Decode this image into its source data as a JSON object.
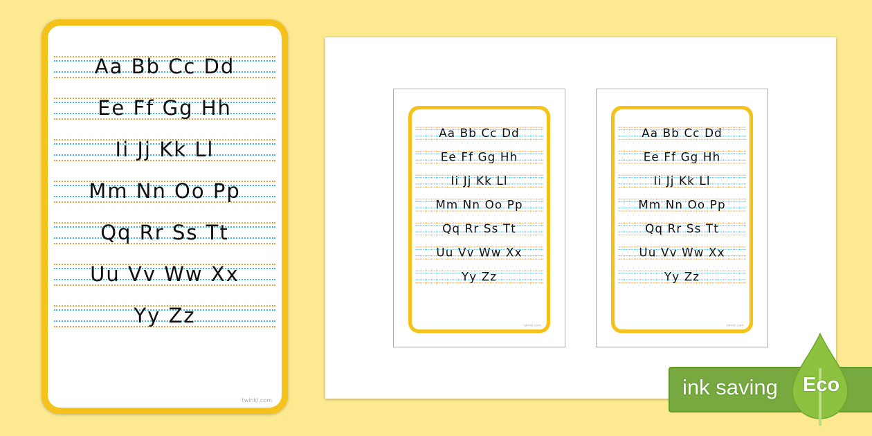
{
  "alphabet_rows": [
    "Aa Bb Cc Dd",
    "Ee Ff Gg Hh",
    "Ii Jj Kk Ll",
    "Mm Nn Oo Pp",
    "Qq Rr Ss Tt",
    "Uu Vv Ww Xx",
    "Yy Zz"
  ],
  "card_footer": "twinkl.com",
  "colors": {
    "background": "#fde98f",
    "card_border": "#f4c21a",
    "guide_orange": "#f29a3a",
    "guide_blue": "#38b7e8",
    "eco_green": "#78a840"
  },
  "badge": {
    "text": "ink saving",
    "label": "Eco",
    "icon": "leaf-icon"
  }
}
